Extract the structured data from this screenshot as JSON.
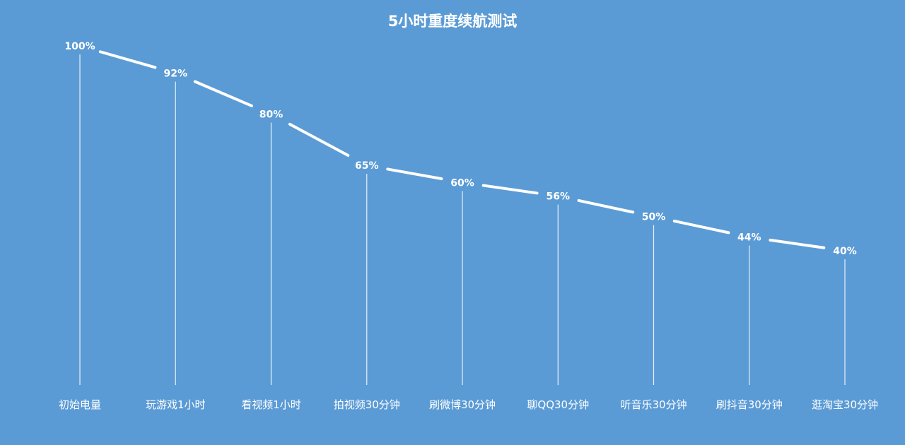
{
  "chart_data": {
    "type": "line",
    "title": "5小时重度续航测试",
    "xlabel": "",
    "ylabel": "",
    "categories": [
      "初始电量",
      "玩游戏1小时",
      "看视频1小时",
      "拍视频30分钟",
      "刷微博30分钟",
      "聊QQ30分钟",
      "听音乐30分钟",
      "刷抖音30分钟",
      "逛淘宝30分钟"
    ],
    "series": [
      {
        "values": [
          100,
          92,
          80,
          65,
          60,
          56,
          50,
          44,
          40
        ]
      }
    ],
    "data_labels": [
      "100%",
      "92%",
      "80%",
      "65%",
      "60%",
      "56%",
      "50%",
      "44%",
      "40%"
    ],
    "ylim": [
      0,
      100
    ],
    "grid": false,
    "legend": "none",
    "colors": {
      "background": "#5b9bd5",
      "line": "#ffffff",
      "text": "#ffffff",
      "drop_line": "#ffffff"
    }
  }
}
